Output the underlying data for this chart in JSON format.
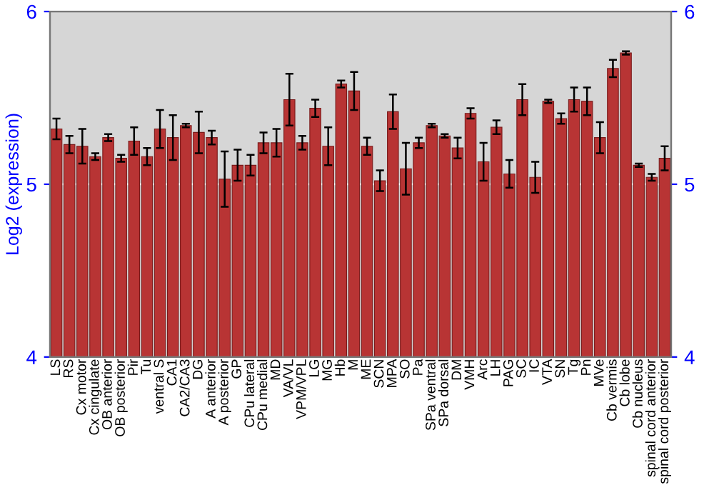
{
  "chart_data": {
    "type": "bar",
    "ylabel": "Log2 (expression)",
    "categories": [
      "LS",
      "RS",
      "Cx motor",
      "Cx cingulate",
      "OB anterior",
      "OB posterior",
      "Pir",
      "Tu",
      "ventral S",
      "CA1",
      "CA2/CA3",
      "DG",
      "A anterior",
      "A posterior",
      "GP",
      "CPu lateral",
      "CPu medial",
      "MD",
      "VA/VL",
      "VPM/VPL",
      "LG",
      "MG",
      "Hb",
      "M",
      "ME",
      "SCN",
      "MPA",
      "SO",
      "Pa",
      "SPa ventral",
      "SPa dorsal",
      "DM",
      "VMH",
      "Arc",
      "LH",
      "PAG",
      "SC",
      "IC",
      "VTA",
      "SN",
      "Tg",
      "Pn",
      "MVe",
      "Cb vermis",
      "Cb lobe",
      "Cb nucleus",
      "spinal cord anterior",
      "spinal cord posterior"
    ],
    "series": [
      {
        "color": "#b83434",
        "values": [
          5.32,
          5.23,
          5.22,
          5.16,
          5.27,
          5.15,
          5.25,
          5.16,
          5.32,
          5.27,
          5.34,
          5.3,
          5.27,
          5.03,
          5.11,
          5.11,
          5.24,
          5.24,
          5.49,
          5.24,
          5.44,
          5.22,
          5.58,
          5.54,
          5.22,
          5.02,
          5.42,
          5.09,
          5.24,
          5.34,
          5.28,
          5.21,
          5.41,
          5.13,
          5.33,
          5.06,
          5.49,
          5.04,
          5.48,
          5.38,
          5.49,
          5.48,
          5.27,
          5.67,
          5.76,
          5.11,
          5.04,
          5.15
        ],
        "errors": [
          0.06,
          0.05,
          0.1,
          0.02,
          0.02,
          0.02,
          0.08,
          0.05,
          0.11,
          0.13,
          0.01,
          0.12,
          0.04,
          0.16,
          0.09,
          0.06,
          0.06,
          0.08,
          0.15,
          0.04,
          0.05,
          0.11,
          0.02,
          0.11,
          0.05,
          0.06,
          0.1,
          0.15,
          0.03,
          0.01,
          0.01,
          0.06,
          0.03,
          0.11,
          0.04,
          0.08,
          0.09,
          0.09,
          0.01,
          0.03,
          0.07,
          0.08,
          0.09,
          0.05,
          0.01,
          0.01,
          0.02,
          0.07
        ]
      }
    ],
    "ylim": [
      4,
      6
    ],
    "yticks": [
      4,
      5,
      6
    ],
    "y2lim": [
      4,
      6
    ],
    "y2ticks": [
      4,
      5,
      6
    ],
    "grid": "y"
  }
}
